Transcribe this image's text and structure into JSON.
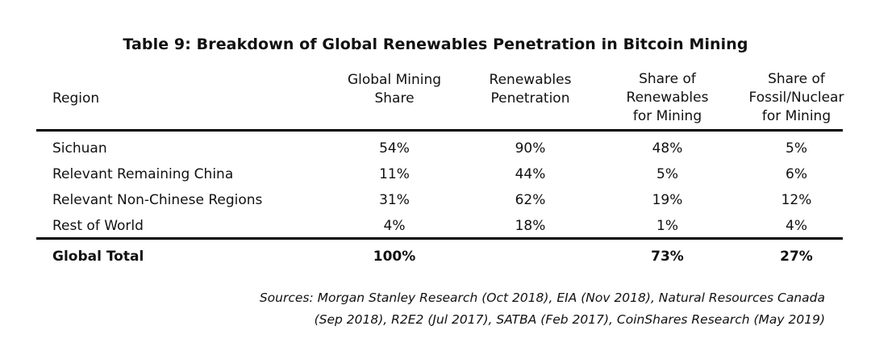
{
  "title": "Table 9: Breakdown of Global Renewables Penetration in Bitcoin Mining",
  "columns": [
    [
      "Region"
    ],
    [
      "Global Mining",
      "Share"
    ],
    [
      "Renewables",
      "Penetration"
    ],
    [
      "Share of",
      "Renewables",
      "for Mining"
    ],
    [
      "Share of",
      "Fossil/Nuclear",
      "for Mining"
    ]
  ],
  "rows": [
    {
      "region": "Sichuan",
      "global_mining_share": "54%",
      "renewables_penetration": "90%",
      "share_renewables": "48%",
      "share_fossil": "5%"
    },
    {
      "region": "Relevant Remaining China",
      "global_mining_share": "11%",
      "renewables_penetration": "44%",
      "share_renewables": "5%",
      "share_fossil": "6%"
    },
    {
      "region": "Relevant Non-Chinese Regions",
      "global_mining_share": "31%",
      "renewables_penetration": "62%",
      "share_renewables": "19%",
      "share_fossil": "12%"
    },
    {
      "region": "Rest of World",
      "global_mining_share": "4%",
      "renewables_penetration": "18%",
      "share_renewables": "1%",
      "share_fossil": "4%"
    }
  ],
  "total": {
    "region": "Global Total",
    "global_mining_share": "100%",
    "renewables_penetration": "",
    "share_renewables": "73%",
    "share_fossil": "27%"
  },
  "sources": [
    "Sources: Morgan Stanley Research (Oct 2018), EIA (Nov 2018), Natural Resources Canada",
    "(Sep 2018), R2E2 (Jul 2017), SATBA (Feb 2017), CoinShares Research (May 2019)"
  ]
}
